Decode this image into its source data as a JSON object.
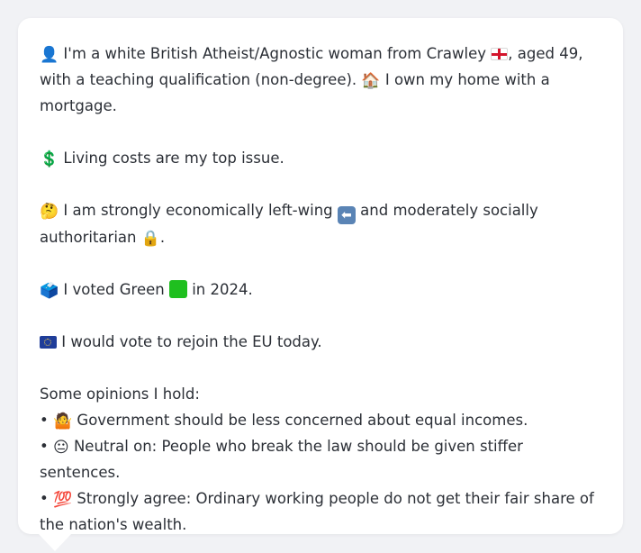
{
  "profile": {
    "intro": {
      "person_emoji": "👤",
      "text_a": "I'm a white British Atheist/Agnostic woman from Crawley",
      "flag": "england-flag",
      "text_b": ", aged 49, with a teaching qualification (non-degree).",
      "home_emoji": "🏠",
      "text_c": "I own my home with a mortgage."
    },
    "issue": {
      "emoji": "💲",
      "text": "Living costs are my top issue."
    },
    "ideology": {
      "emoji": "🤔",
      "text_a": "I am strongly economically left-wing",
      "arrow_emoji": "⬅",
      "text_b": "and moderately socially authoritarian",
      "lock_emoji": "🔒",
      "text_c": "."
    },
    "vote": {
      "emoji": "🗳️",
      "text_a": "I voted Green",
      "square": "green-square",
      "text_b": "in 2024."
    },
    "eu": {
      "flag": "eu-flag",
      "text": "I would vote to rejoin the EU today."
    },
    "opinions": {
      "heading": "Some opinions I hold:",
      "items": [
        {
          "bullet": "•",
          "emoji": "🤷",
          "text": "Government should be less concerned about equal incomes."
        },
        {
          "bullet": "•",
          "emoji": "😐",
          "text": "Neutral on: People who break the law should be given stiffer sentences."
        },
        {
          "bullet": "•",
          "emoji": "💯",
          "text": "Strongly agree: Ordinary working people do not get their fair share of the nation's wealth."
        }
      ]
    }
  },
  "colors": {
    "background": "#f1f2f5",
    "card": "#ffffff",
    "text": "#2b2f36",
    "green": "#1fbf1f",
    "eu_blue": "#1f3d99"
  }
}
